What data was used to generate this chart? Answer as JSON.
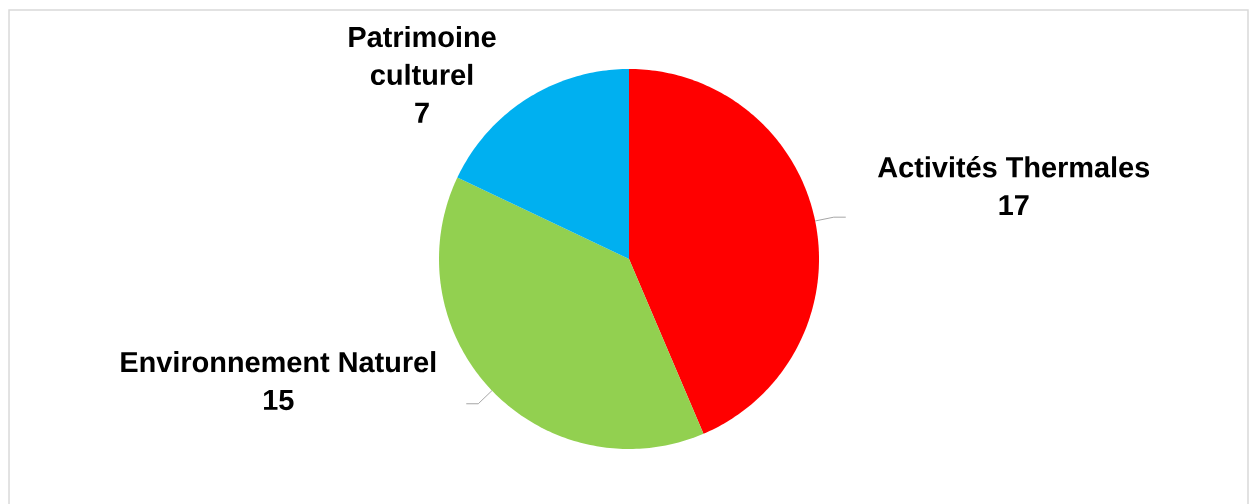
{
  "chart_data": {
    "type": "pie",
    "categories": [
      "Activités Thermales",
      "Environnement Naturel",
      "Patrimoine culturel"
    ],
    "values": [
      17,
      15,
      7
    ],
    "colors": [
      "#ff0000",
      "#92d050",
      "#00b0f0"
    ],
    "data_labels": true
  }
}
